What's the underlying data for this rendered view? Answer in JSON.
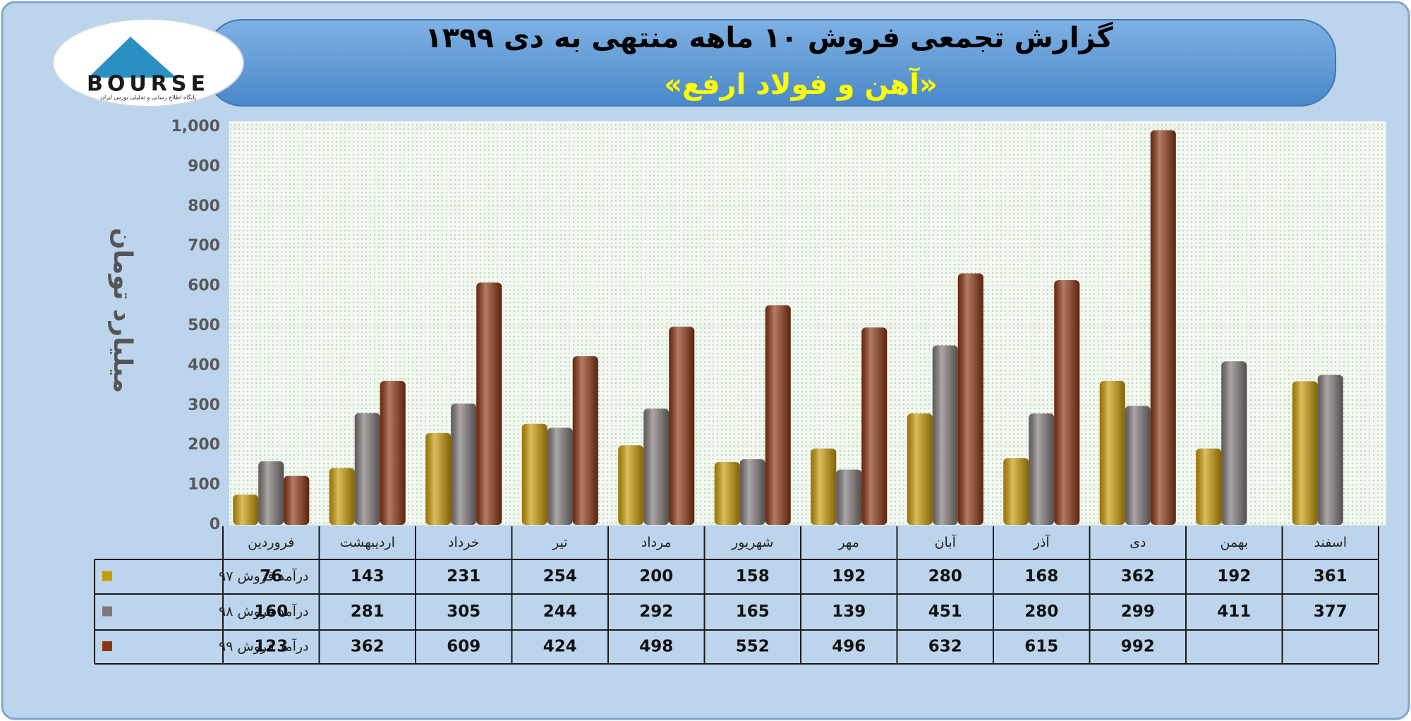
{
  "logo": {
    "text": "BOURSE",
    "tagline": "پایگاه اطلاع رسانی و تحلیلی بورس ایران"
  },
  "chart_data": {
    "type": "bar",
    "title": "گزارش تجمعی فروش ۱۰ ماهه منتهی به دی ۱۳۹۹",
    "subtitle": "«آهن و فولاد ارفع»",
    "y_label": "میلیارد تومان",
    "categories": [
      "فروردین",
      "اردیبهشت",
      "خرداد",
      "تیر",
      "مرداد",
      "شهریور",
      "مهر",
      "آبان",
      "آذر",
      "دی",
      "بهمن",
      "اسفند"
    ],
    "series": [
      {
        "name": "درآمد فروش ۹۷",
        "color": "#c99a06",
        "values": [
          76,
          143,
          231,
          254,
          200,
          158,
          192,
          280,
          168,
          362,
          192,
          361
        ]
      },
      {
        "name": "درآمد فروش ۹۸",
        "color": "#7f7778",
        "values": [
          160,
          281,
          305,
          244,
          292,
          165,
          139,
          451,
          280,
          299,
          411,
          377
        ]
      },
      {
        "name": "درآمد فروش ۹۹",
        "color": "#8a3510",
        "values": [
          123,
          362,
          609,
          424,
          498,
          552,
          496,
          632,
          615,
          992,
          null,
          null
        ]
      }
    ],
    "ylim": [
      0,
      1000
    ],
    "yticks": [
      0,
      100,
      200,
      300,
      400,
      500,
      600,
      700,
      800,
      900,
      {
        "value": 1000,
        "label": "1,000"
      }
    ],
    "grid": true,
    "data_table": true
  }
}
